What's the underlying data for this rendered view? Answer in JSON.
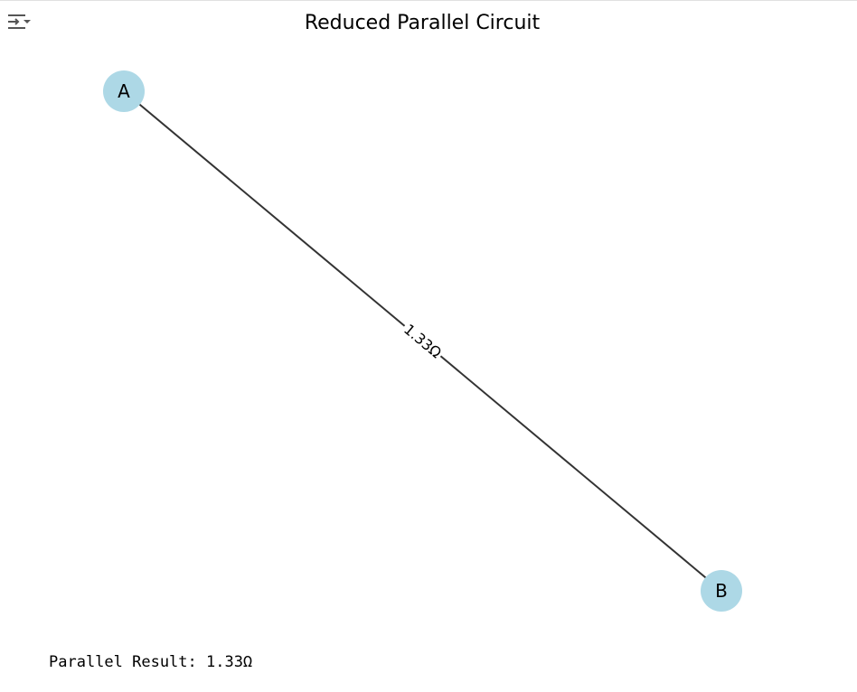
{
  "output_toolbar": {
    "toggle_icon": "output-collapse-icon"
  },
  "diagram": {
    "title": "Reduced Parallel Circuit",
    "nodes": [
      {
        "id": "A",
        "label": "A"
      },
      {
        "id": "B",
        "label": "B"
      }
    ],
    "edges": [
      {
        "from": "A",
        "to": "B",
        "label": "1.33Ω"
      }
    ],
    "colors": {
      "node_fill": "#add8e6",
      "edge": "#333333"
    }
  },
  "console": {
    "result_line": "Parallel Result: 1.33Ω"
  }
}
